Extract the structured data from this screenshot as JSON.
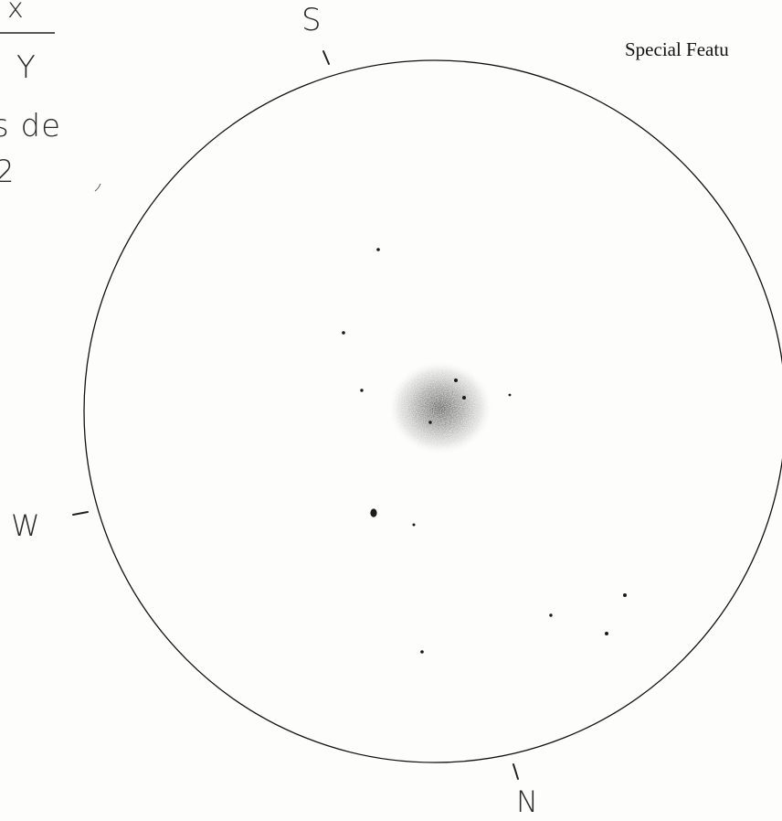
{
  "notes": {
    "x": "x",
    "y": "Y",
    "de": "s de",
    "two": "2"
  },
  "heading": {
    "special_features": "Special Featu"
  },
  "compass": {
    "s": "S",
    "w": "W",
    "n": "N"
  },
  "colors": {
    "ink": "#111111",
    "pencil": "#2a2a2a",
    "paper": "#fdfdfc"
  }
}
